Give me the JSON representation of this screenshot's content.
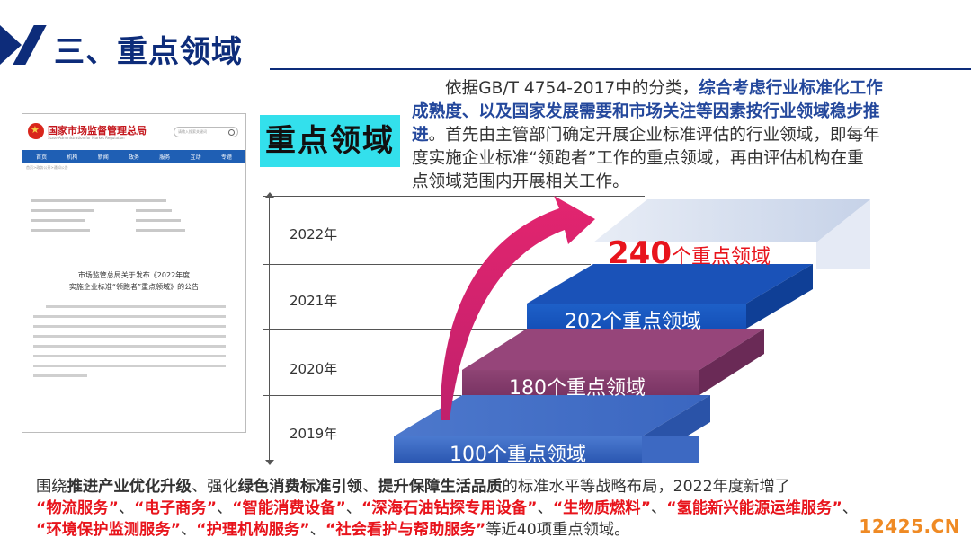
{
  "header": {
    "title": "三、重点领域"
  },
  "document": {
    "org_name": "国家市场监督管理总局",
    "org_en": "State Administration for Market Regulation",
    "search_placeholder": "请输入搜索关键词",
    "nav": [
      "首页",
      "机构",
      "新闻",
      "政务",
      "服务",
      "互动",
      "专题"
    ],
    "breadcrumb": "首页>政务公开>通知公告",
    "heading_line1": "市场监管总局关于发布《2022年度",
    "heading_line2": "实施企业标准“领跑者”重点领域》的公告"
  },
  "label": {
    "text": "重点领域"
  },
  "description": {
    "lines": [
      [
        {
          "t": "依据GB/T 4754-2017中的分类，",
          "hl": false
        },
        {
          "t": "综合考虑行业标准化工作",
          "hl": true
        }
      ],
      [
        {
          "t": "成熟度、以及国家发展需要和市场关注等因素按行业领域稳步推",
          "hl": true
        }
      ],
      [
        {
          "t": "进",
          "hl": true
        },
        {
          "t": "。首先由主管部门确定开展企业标准评估的行业领域，即每年",
          "hl": false
        }
      ],
      [
        {
          "t": "度实施企业标准“领跑者”工作的重点领域，再由评估机构在重",
          "hl": false
        }
      ],
      [
        {
          "t": "点领域范围内开展相关工作。",
          "hl": false
        }
      ]
    ]
  },
  "timeline": {
    "years": [
      "2022年",
      "2021年",
      "2020年",
      "2019年"
    ]
  },
  "steps": {
    "s2019": "100个重点领域",
    "s2020": "180个重点领域",
    "s2021": "202个重点领域",
    "s2022_num": "240",
    "s2022_unit": "个重点领域"
  },
  "colors": {
    "accent": "#0d2c7a",
    "red": "#e8141c",
    "cyan": "#33e0ec"
  },
  "bottom": {
    "lines": [
      [
        {
          "t": "围绕",
          "s": "n"
        },
        {
          "t": "推进产业优化升级",
          "s": "b"
        },
        {
          "t": "、强化",
          "s": "n"
        },
        {
          "t": "绿色消费标准引领",
          "s": "b"
        },
        {
          "t": "、",
          "s": "n"
        },
        {
          "t": "提升保障生活品质",
          "s": "b"
        },
        {
          "t": "的标准水平等战略布局，2022年度新增了",
          "s": "n"
        }
      ],
      [
        {
          "t": "“物流服务”",
          "s": "r"
        },
        {
          "t": "、",
          "s": "n"
        },
        {
          "t": "“电子商务”",
          "s": "r"
        },
        {
          "t": "、",
          "s": "n"
        },
        {
          "t": "“智能消费设备”",
          "s": "r"
        },
        {
          "t": "、",
          "s": "n"
        },
        {
          "t": "“深海石油钻探专用设备”",
          "s": "r"
        },
        {
          "t": "、",
          "s": "n"
        },
        {
          "t": "“生物质燃料”",
          "s": "r"
        },
        {
          "t": "、",
          "s": "n"
        },
        {
          "t": "“氢能新兴能源运维服务”",
          "s": "r"
        },
        {
          "t": "、",
          "s": "n"
        }
      ],
      [
        {
          "t": "“环境保护监测服务”",
          "s": "r"
        },
        {
          "t": "、",
          "s": "n"
        },
        {
          "t": "“护理机构服务”",
          "s": "r"
        },
        {
          "t": "、",
          "s": "n"
        },
        {
          "t": "“社会看护与帮助服务”",
          "s": "r"
        },
        {
          "t": "等近40项重点领域。",
          "s": "n"
        }
      ]
    ]
  },
  "watermark": "12425.CN"
}
